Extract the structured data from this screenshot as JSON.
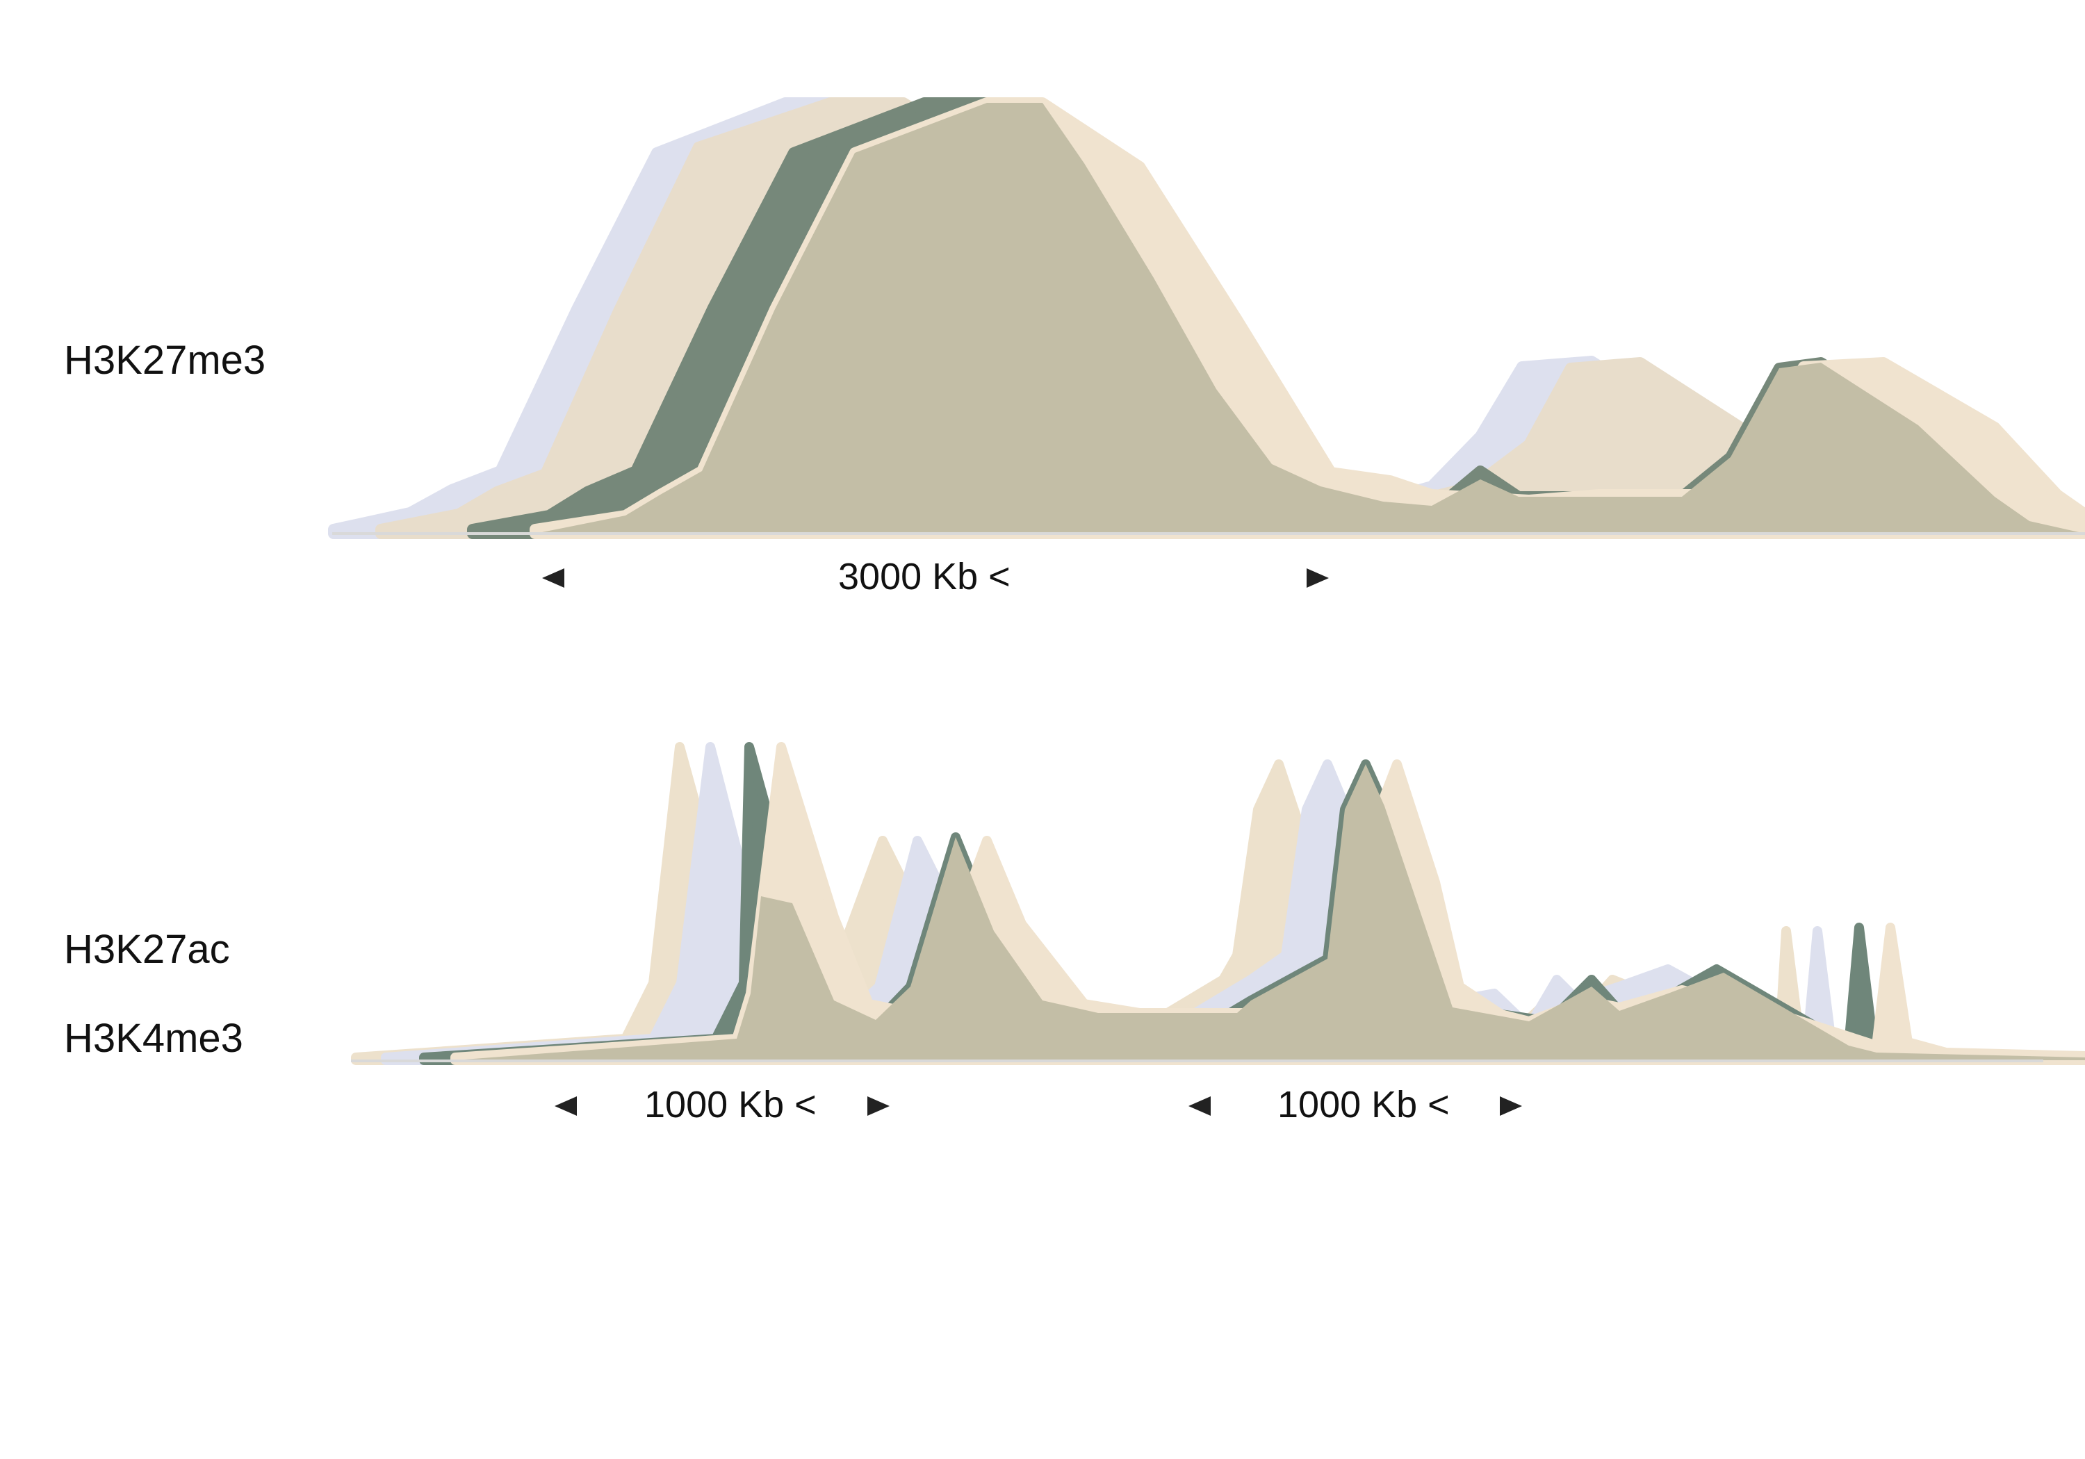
{
  "colors": {
    "layer_lavender": "#dde0ee",
    "layer_beige": "#e8ddcb",
    "layer_green": "#76887a",
    "layer_front": "#c3bea6",
    "layer_peach_edge": "#f0e3cf",
    "axis": "#d9d9d9",
    "arrow": "#222222"
  },
  "tracks": {
    "top": {
      "label": "H3K27me3"
    },
    "bottom": {
      "labels": [
        "H3K27ac",
        "H3K4me3"
      ]
    }
  },
  "scale_bars": {
    "top": {
      "label": "3000 Kb <"
    },
    "bottom_left": {
      "label": "1000 Kb <"
    },
    "bottom_right": {
      "label": "1000 Kb <"
    }
  }
}
